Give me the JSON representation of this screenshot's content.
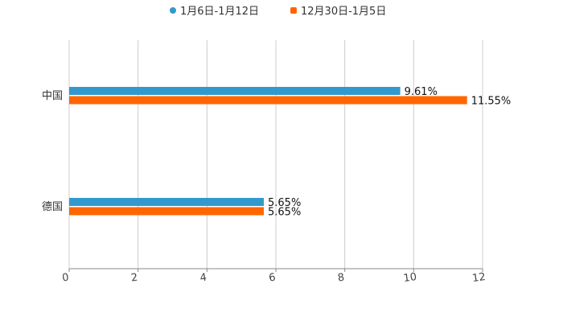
{
  "chart_data": {
    "type": "bar",
    "orientation": "horizontal",
    "categories": [
      "中国",
      "德国"
    ],
    "series": [
      {
        "name": "1月6日-1月12日",
        "values": [
          9.61,
          5.65
        ],
        "labels": [
          "9.61%",
          "5.65%"
        ],
        "color": "#3399cc"
      },
      {
        "name": "12月30日-1月5日",
        "values": [
          11.55,
          5.65
        ],
        "labels": [
          "11.55%",
          "5.65%"
        ],
        "color": "#ff6600"
      }
    ],
    "xlim": [
      0,
      12
    ],
    "xticks": [
      "0",
      "2",
      "4",
      "6",
      "8",
      "10",
      "12"
    ],
    "grid": true,
    "legend": "top-center",
    "title": "",
    "xlabel": "",
    "ylabel": ""
  }
}
